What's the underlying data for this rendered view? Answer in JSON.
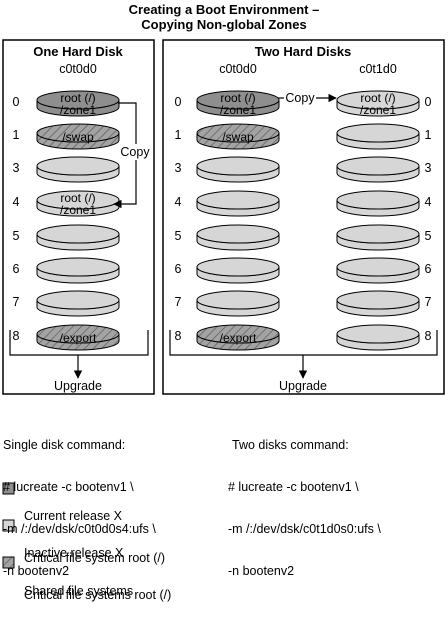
{
  "title": {
    "line1": "Creating a Boot Environment –",
    "line2": "Copying Non-global Zones"
  },
  "fill_colors": {
    "current": "#8e8e8e",
    "inactive": "#d6d6d6",
    "shared": "#a3a3a3"
  },
  "panels": [
    {
      "heading": "One Hard Disk",
      "disks": [
        {
          "name": "c0t0d0",
          "slices": [
            {
              "number": "0",
              "label": "root (/)\n/zone1",
              "type": "current"
            },
            {
              "number": "1",
              "label": "/swap",
              "type": "shared"
            },
            {
              "number": "3",
              "label": "",
              "type": "inactive"
            },
            {
              "number": "4",
              "label": "root (/)\n/zone1",
              "type": "inactive"
            },
            {
              "number": "5",
              "label": "",
              "type": "inactive"
            },
            {
              "number": "6",
              "label": "",
              "type": "inactive"
            },
            {
              "number": "7",
              "label": "",
              "type": "inactive"
            },
            {
              "number": "8",
              "label": "/export",
              "type": "shared"
            }
          ]
        }
      ],
      "copy_label": "Copy",
      "upgrade_label": "Upgrade"
    },
    {
      "heading": "Two Hard Disks",
      "disks": [
        {
          "name": "c0t0d0",
          "slices": [
            {
              "number": "0",
              "label": "root (/)\n/zone1",
              "type": "current"
            },
            {
              "number": "1",
              "label": "/swap",
              "type": "shared"
            },
            {
              "number": "3",
              "label": "",
              "type": "inactive"
            },
            {
              "number": "4",
              "label": "",
              "type": "inactive"
            },
            {
              "number": "5",
              "label": "",
              "type": "inactive"
            },
            {
              "number": "6",
              "label": "",
              "type": "inactive"
            },
            {
              "number": "7",
              "label": "",
              "type": "inactive"
            },
            {
              "number": "8",
              "label": "/export",
              "type": "shared"
            }
          ]
        },
        {
          "name": "c0t1d0",
          "slices": [
            {
              "number": "0",
              "label": "root (/)\n/zone1",
              "type": "inactive"
            },
            {
              "number": "1",
              "label": "",
              "type": "inactive"
            },
            {
              "number": "3",
              "label": "",
              "type": "inactive"
            },
            {
              "number": "4",
              "label": "",
              "type": "inactive"
            },
            {
              "number": "5",
              "label": "",
              "type": "inactive"
            },
            {
              "number": "6",
              "label": "",
              "type": "inactive"
            },
            {
              "number": "7",
              "label": "",
              "type": "inactive"
            },
            {
              "number": "8",
              "label": "",
              "type": "inactive"
            }
          ]
        }
      ],
      "copy_label": "Copy",
      "upgrade_label": "Upgrade"
    }
  ],
  "commands": {
    "single": {
      "heading": "Single disk command:",
      "lines": [
        "# lucreate -c bootenv1 \\",
        "-m /:/dev/dsk/c0t0d0s4:ufs \\",
        "-n bootenv2"
      ]
    },
    "two": {
      "heading": "Two disks command:",
      "lines": [
        "# lucreate -c bootenv1 \\",
        "-m /:/dev/dsk/c0t1d0s0:ufs \\",
        "-n bootenv2"
      ]
    }
  },
  "legend": [
    {
      "type": "current",
      "icon": "gray-slice-icon",
      "lines": [
        "Current release X",
        "Critical file system root (/)"
      ]
    },
    {
      "type": "inactive",
      "icon": "light-slice-icon",
      "lines": [
        "Inactive release X",
        "Critical file systems root (/)"
      ]
    },
    {
      "type": "shared",
      "icon": "hatched-slice-icon",
      "lines": [
        "Shared file systems"
      ]
    }
  ]
}
